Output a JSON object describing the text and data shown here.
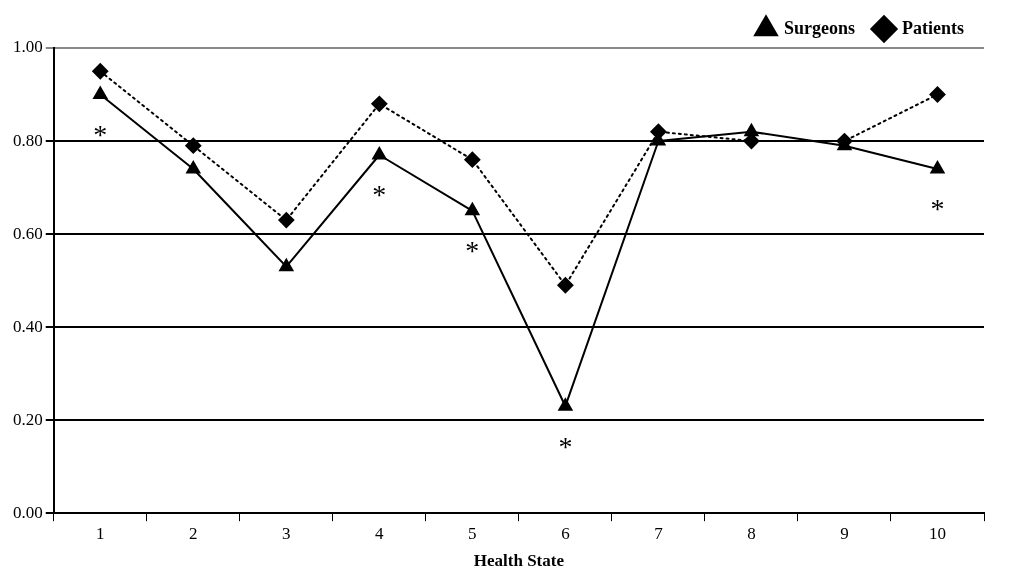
{
  "chart_data": {
    "type": "line",
    "xlabel": "Health State",
    "categories": [
      "1",
      "2",
      "3",
      "4",
      "5",
      "6",
      "7",
      "8",
      "9",
      "10"
    ],
    "series": [
      {
        "name": "Surgeons",
        "color": "#000000",
        "marker": "triangle",
        "line_style": "solid",
        "values": [
          0.9,
          0.74,
          0.53,
          0.77,
          0.65,
          0.23,
          0.8,
          0.82,
          0.79,
          0.74
        ]
      },
      {
        "name": "Patients",
        "color": "#000000",
        "marker": "diamond",
        "line_style": "dotted",
        "values": [
          0.95,
          0.79,
          0.63,
          0.88,
          0.76,
          0.49,
          0.82,
          0.8,
          0.8,
          0.9
        ]
      }
    ],
    "ylim": [
      0,
      1
    ],
    "yticks": [
      {
        "value": 0,
        "label": "0.00"
      },
      {
        "value": 0.2,
        "label": "0.20"
      },
      {
        "value": 0.4,
        "label": "0.40"
      },
      {
        "value": 0.6,
        "label": "0.60"
      },
      {
        "value": 0.8,
        "label": "0.80"
      },
      {
        "value": 1,
        "label": "1.00"
      }
    ],
    "grid": "y",
    "legend": "top right",
    "annotations": [
      {
        "text": "*",
        "x": "1",
        "y": 0.9
      },
      {
        "text": "*",
        "x": "4",
        "y": 0.77
      },
      {
        "text": "*",
        "x": "5",
        "y": 0.65
      },
      {
        "text": "*",
        "x": "6",
        "y": 0.23
      },
      {
        "text": "*",
        "x": "10",
        "y": 0.74
      }
    ]
  }
}
